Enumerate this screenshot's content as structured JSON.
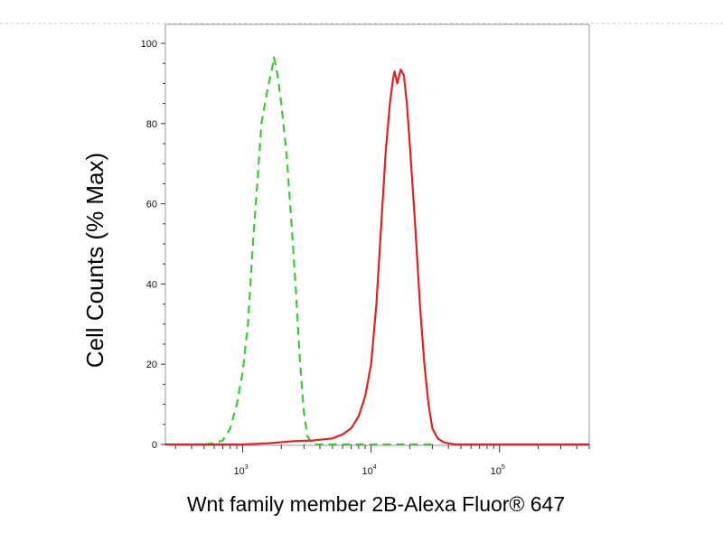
{
  "chart_data": {
    "type": "line",
    "title": "",
    "xlabel": "Wnt family member 2B-Alexa Fluor® 647",
    "ylabel": "Cell Counts (% Max)",
    "x_scale": "log",
    "xlim": [
      250,
      500000
    ],
    "ylim": [
      0,
      100
    ],
    "x_ticks": [
      {
        "value": 1000,
        "base": "10",
        "exp": "3"
      },
      {
        "value": 10000,
        "base": "10",
        "exp": "4"
      },
      {
        "value": 100000,
        "base": "10",
        "exp": "5"
      }
    ],
    "y_ticks": [
      {
        "value": 0,
        "label": "0"
      },
      {
        "value": 20,
        "label": "20"
      },
      {
        "value": 40,
        "label": "40"
      },
      {
        "value": 60,
        "label": "60"
      },
      {
        "value": 80,
        "label": "80"
      },
      {
        "value": 100,
        "label": "100"
      }
    ],
    "grid": false,
    "legend": "none",
    "series": [
      {
        "color": "#33cc33",
        "style": "dashed",
        "points": [
          [
            400,
            0
          ],
          [
            500,
            0
          ],
          [
            600,
            0.3
          ],
          [
            700,
            1
          ],
          [
            800,
            4
          ],
          [
            900,
            10
          ],
          [
            1000,
            18
          ],
          [
            1100,
            30
          ],
          [
            1200,
            50
          ],
          [
            1300,
            65
          ],
          [
            1400,
            80
          ],
          [
            1550,
            88
          ],
          [
            1700,
            94
          ],
          [
            1750,
            96.5
          ],
          [
            1850,
            93
          ],
          [
            2000,
            85
          ],
          [
            2200,
            72
          ],
          [
            2400,
            55
          ],
          [
            2600,
            38
          ],
          [
            2800,
            20
          ],
          [
            3000,
            8
          ],
          [
            3200,
            2
          ],
          [
            3500,
            0
          ],
          [
            4500,
            0
          ],
          [
            20000,
            0
          ],
          [
            30000,
            0
          ]
        ]
      },
      {
        "color": "#dd2222",
        "style": "solid",
        "points": [
          [
            250,
            0
          ],
          [
            1000,
            0
          ],
          [
            1600,
            0.3
          ],
          [
            2500,
            0.8
          ],
          [
            3500,
            1
          ],
          [
            5000,
            1.5
          ],
          [
            6000,
            2.5
          ],
          [
            7000,
            4
          ],
          [
            8000,
            7
          ],
          [
            9000,
            12
          ],
          [
            10000,
            20
          ],
          [
            11000,
            35
          ],
          [
            12000,
            55
          ],
          [
            13000,
            73
          ],
          [
            14000,
            85
          ],
          [
            14800,
            91
          ],
          [
            15200,
            93
          ],
          [
            16000,
            90
          ],
          [
            17000,
            93.5
          ],
          [
            18000,
            92
          ],
          [
            19000,
            85
          ],
          [
            20000,
            75
          ],
          [
            22000,
            55
          ],
          [
            24000,
            35
          ],
          [
            26000,
            20
          ],
          [
            28000,
            10
          ],
          [
            30000,
            4
          ],
          [
            33000,
            1.5
          ],
          [
            37000,
            0.5
          ],
          [
            45000,
            0
          ],
          [
            80000,
            0
          ],
          [
            200000,
            0
          ],
          [
            500000,
            0
          ]
        ]
      }
    ]
  }
}
